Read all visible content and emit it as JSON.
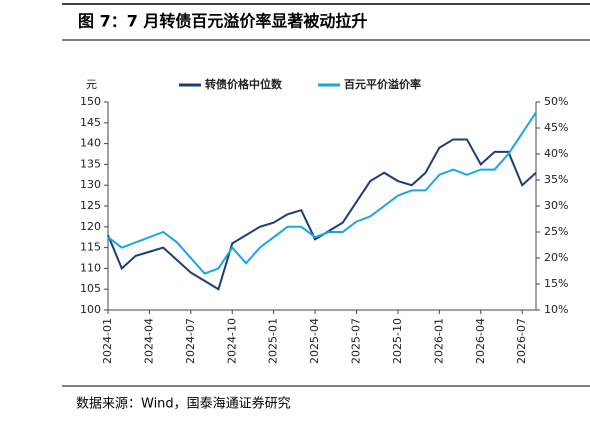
{
  "header": {
    "title": "图 7：7 月转债百元溢价率显著被动拉升"
  },
  "chart_data": {
    "type": "line",
    "ylabel": "元",
    "categories": [
      "2024-01",
      null,
      null,
      "2024-04",
      null,
      null,
      "2024-07",
      null,
      null,
      "2024-10",
      null,
      null,
      "2025-01",
      null,
      null,
      "2025-04",
      null,
      null,
      "2025-07",
      null,
      null,
      "2025-10",
      null,
      null,
      "2026-01",
      null,
      null,
      "2026-04",
      null,
      null,
      "2026-07",
      null
    ],
    "series": [
      {
        "name": "转债价格中位数",
        "color": "#1f3c7a",
        "axis": "y",
        "values": [
          118,
          110,
          113,
          114,
          115,
          112,
          109,
          107,
          105,
          116,
          118,
          120,
          121,
          123,
          124,
          117,
          119,
          121,
          126,
          131,
          133,
          131,
          130,
          133,
          139,
          141,
          141,
          135,
          138,
          138,
          130,
          133
        ]
      },
      {
        "name": "百元平价溢价率",
        "color": "#1aa7e1",
        "axis": "y2",
        "values": [
          24,
          22,
          23,
          24,
          25,
          23,
          20,
          17,
          18,
          22,
          19,
          22,
          24,
          26,
          26,
          24,
          25,
          25,
          27,
          28,
          30,
          32,
          33,
          33,
          36,
          37,
          36,
          37,
          37,
          40,
          44,
          48
        ]
      }
    ],
    "ylim": [
      100,
      150
    ],
    "yticks": [
      100,
      105,
      110,
      115,
      120,
      125,
      130,
      135,
      140,
      145,
      150
    ],
    "y2lim": [
      10,
      50
    ],
    "y2ticks": [
      {
        "value": 10,
        "label": "10%"
      },
      {
        "value": 15,
        "label": "15%"
      },
      {
        "value": 20,
        "label": "20%"
      },
      {
        "value": 25,
        "label": "25%"
      },
      {
        "value": 30,
        "label": "30%"
      },
      {
        "value": 35,
        "label": "35%"
      },
      {
        "value": 40,
        "label": "40%"
      },
      {
        "value": 45,
        "label": "45%"
      },
      {
        "value": 50,
        "label": "50%"
      }
    ]
  },
  "footer": {
    "source": "数据来源：Wind，国泰海通证券研究"
  }
}
